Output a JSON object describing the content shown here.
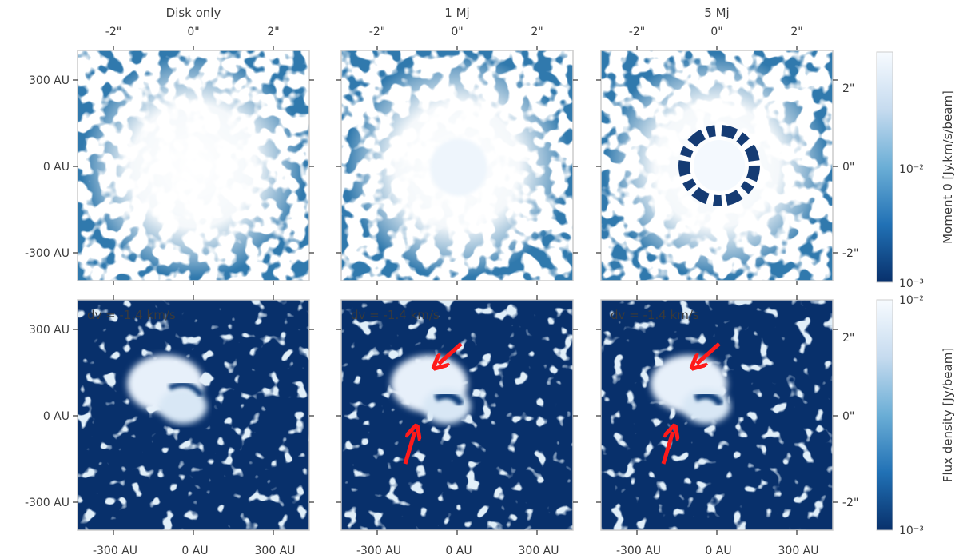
{
  "figure": {
    "panel_titles": [
      "Disk only",
      "1 Mj",
      "5 Mj"
    ],
    "top_axis_ticks": [
      "-2\"",
      "0\"",
      "2\""
    ],
    "left_axis_ticks": [
      "300 AU",
      "0 AU",
      "-300 AU"
    ],
    "bottom_axis_ticks": [
      "-300 AU",
      "0 AU",
      "300 AU"
    ],
    "right_axis_ticks": [
      "2\"",
      "0\"",
      "-2\""
    ],
    "row2_annotation": "dv = -1.4 km/s",
    "colorbar_top": {
      "label": "Moment 0 [Jy.km/s/beam]",
      "max_label": "",
      "mid_label": "10⁻²",
      "min_label": "10⁻³",
      "colormap": "Blues_r",
      "scale": "log"
    },
    "colorbar_bottom": {
      "label": "Flux density [Jy/beam]",
      "max_label": "10⁻²",
      "min_label": "10⁻³",
      "colormap": "Blues_r",
      "scale": "log"
    },
    "colors": {
      "dark_blue": "#08306b",
      "light": "#f7fbff",
      "arrow": "#ff1a1a",
      "frame": "#cccccc"
    }
  },
  "chart_data": [
    {
      "type": "heatmap",
      "row": "moment0",
      "panel": "Disk only",
      "feature": "bright disk, no gap"
    },
    {
      "type": "heatmap",
      "row": "moment0",
      "panel": "1 Mj",
      "feature": "faint inner cavity"
    },
    {
      "type": "heatmap",
      "row": "moment0",
      "panel": "5 Mj",
      "feature": "dark ring gap around center"
    },
    {
      "type": "heatmap",
      "row": "channel",
      "panel": "Disk only",
      "annotation": "dv = -1.4 km/s",
      "arrows": 0
    },
    {
      "type": "heatmap",
      "row": "channel",
      "panel": "1 Mj",
      "annotation": "dv = -1.4 km/s",
      "arrows": 2
    },
    {
      "type": "heatmap",
      "row": "channel",
      "panel": "5 Mj",
      "annotation": "dv = -1.4 km/s",
      "arrows": 2
    }
  ]
}
